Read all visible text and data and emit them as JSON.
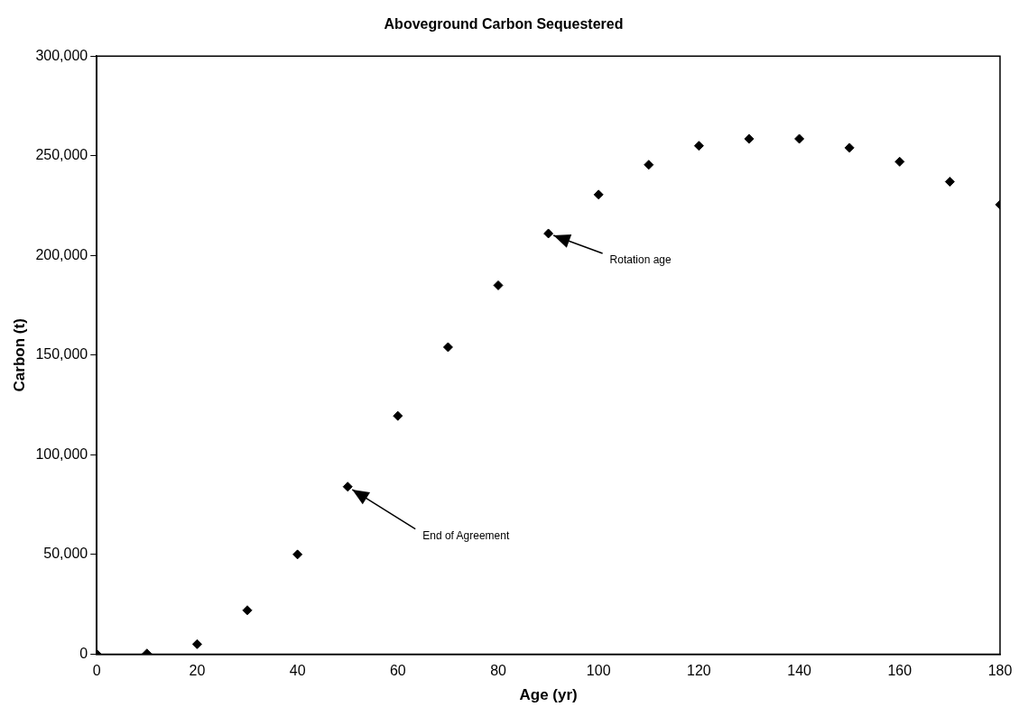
{
  "chart_data": {
    "type": "scatter",
    "title": "Aboveground Carbon Sequestered",
    "xlabel": "Age (yr)",
    "ylabel": "Carbon (t)",
    "x": [
      0,
      10,
      20,
      30,
      40,
      50,
      60,
      70,
      80,
      90,
      100,
      110,
      120,
      130,
      140,
      150,
      160,
      170,
      180
    ],
    "series": [
      {
        "color": "#000000",
        "values": [
          0,
          300,
          5000,
          22000,
          50000,
          84000,
          119500,
          154000,
          185000,
          211000,
          230500,
          245500,
          255000,
          258500,
          258500,
          254000,
          247000,
          237000,
          225500
        ]
      }
    ],
    "xlim": [
      0,
      180
    ],
    "xticks": [
      0,
      20,
      40,
      60,
      80,
      100,
      120,
      140,
      160,
      180
    ],
    "ylim": [
      0,
      300000
    ],
    "yticks": [
      0,
      {
        "value": 50000,
        "label": "50,000"
      },
      {
        "value": 100000,
        "label": "100,000"
      },
      {
        "value": 150000,
        "label": "150,000"
      },
      {
        "value": 200000,
        "label": "200,000"
      },
      {
        "value": 250000,
        "label": "250,000"
      },
      {
        "value": 300000,
        "label": "300,000"
      }
    ],
    "grid": false,
    "legend": false,
    "marker": "diamond",
    "annotations": [
      {
        "text": "Rotation age",
        "x": 90,
        "y": 211000
      },
      {
        "text": "End of Agreement",
        "x": 50,
        "y": 84000
      }
    ]
  }
}
